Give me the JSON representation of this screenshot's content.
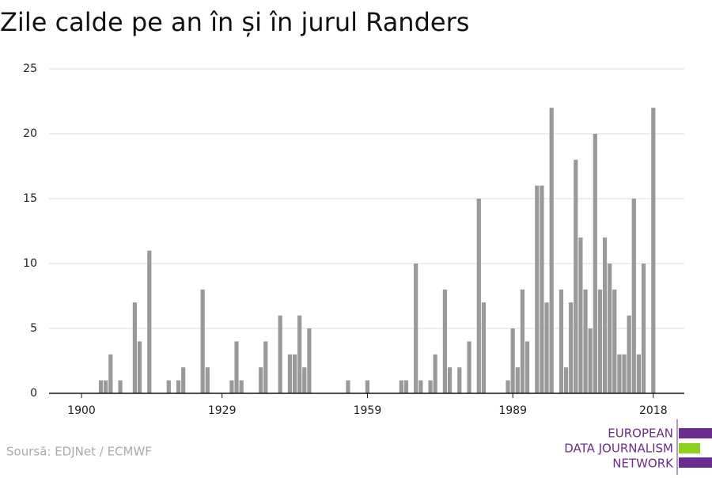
{
  "chart_data": {
    "type": "bar",
    "title": "Zile calde pe an în și în jurul Randers",
    "source": "Soursă: EDJNet / ECMWF",
    "logo": [
      "EUROPEAN",
      "DATA JOURNALISM",
      "NETWORK"
    ],
    "x": [
      1900,
      1901,
      1902,
      1903,
      1904,
      1905,
      1906,
      1907,
      1908,
      1909,
      1910,
      1911,
      1912,
      1913,
      1914,
      1915,
      1916,
      1917,
      1918,
      1919,
      1920,
      1921,
      1922,
      1923,
      1924,
      1925,
      1926,
      1927,
      1928,
      1929,
      1930,
      1931,
      1932,
      1933,
      1934,
      1935,
      1936,
      1937,
      1938,
      1939,
      1940,
      1941,
      1942,
      1943,
      1944,
      1945,
      1946,
      1947,
      1948,
      1949,
      1950,
      1951,
      1952,
      1953,
      1954,
      1955,
      1956,
      1957,
      1958,
      1959,
      1960,
      1961,
      1962,
      1963,
      1964,
      1965,
      1966,
      1967,
      1968,
      1969,
      1970,
      1971,
      1972,
      1973,
      1974,
      1975,
      1976,
      1977,
      1978,
      1979,
      1980,
      1981,
      1982,
      1983,
      1984,
      1985,
      1986,
      1987,
      1988,
      1989,
      1990,
      1991,
      1992,
      1993,
      1994,
      1995,
      1996,
      1997,
      1998,
      1999,
      2000,
      2001,
      2002,
      2003,
      2004,
      2005,
      2006,
      2007,
      2008,
      2009,
      2010,
      2011,
      2012,
      2013,
      2014,
      2015,
      2016,
      2017,
      2018
    ],
    "values": [
      0,
      0,
      0,
      0,
      1,
      1,
      3,
      0,
      1,
      0,
      0,
      7,
      4,
      0,
      11,
      0,
      0,
      0,
      1,
      0,
      1,
      2,
      0,
      0,
      0,
      8,
      2,
      0,
      0,
      0,
      0,
      1,
      4,
      1,
      0,
      0,
      0,
      2,
      4,
      0,
      0,
      6,
      0,
      3,
      3,
      6,
      2,
      5,
      0,
      0,
      0,
      0,
      0,
      0,
      0,
      1,
      0,
      0,
      0,
      1,
      0,
      0,
      0,
      0,
      0,
      0,
      1,
      1,
      0,
      10,
      1,
      0,
      1,
      3,
      0,
      8,
      2,
      0,
      2,
      0,
      4,
      0,
      15,
      7,
      0,
      0,
      0,
      0,
      1,
      5,
      2,
      8,
      4,
      0,
      16,
      16,
      7,
      22,
      0,
      8,
      2,
      7,
      18,
      12,
      8,
      5,
      20,
      8,
      12,
      10,
      8,
      3,
      3,
      6,
      15,
      3,
      10,
      0,
      22
    ],
    "color": "#999999",
    "xlim": [
      1893.3,
      2024.4
    ],
    "xticks": [
      1900,
      1929,
      1959,
      1989,
      2018
    ],
    "ylim": [
      0,
      25
    ],
    "yticks": [
      0,
      5,
      10,
      15,
      20,
      25
    ],
    "grid": true
  }
}
